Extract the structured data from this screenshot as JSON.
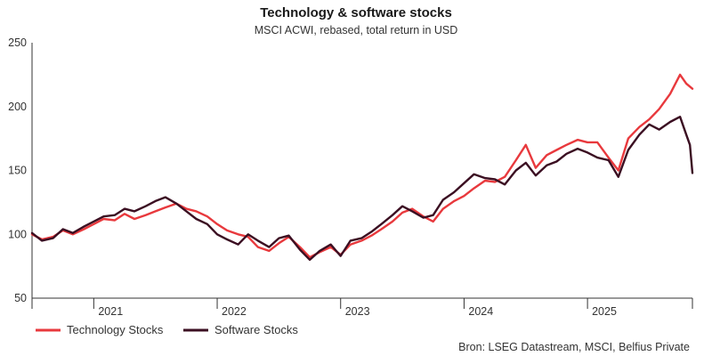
{
  "chart_data": {
    "type": "line",
    "title": "Technology & software stocks",
    "subtitle": "MSCI ACWI, rebased, total return in USD",
    "source": "Bron: LSEG Datastream, MSCI, Belfius Private",
    "ylim": [
      50,
      250
    ],
    "yticks": [
      50,
      100,
      150,
      200,
      250
    ],
    "ytick_labels": [
      "50",
      "100",
      "150",
      "200",
      "250"
    ],
    "xlim": [
      2020.5,
      2025.85
    ],
    "x_period_labels": [
      {
        "label": "2021",
        "year": 2021
      },
      {
        "label": "2022",
        "year": 2022
      },
      {
        "label": "2023",
        "year": 2023
      },
      {
        "label": "2024",
        "year": 2024
      },
      {
        "label": "2025",
        "year": 2025
      }
    ],
    "grid": false,
    "legend_position": "bottom-left",
    "series": [
      {
        "name": "Technology Stocks",
        "color": "#e8393d",
        "points": [
          [
            2020.5,
            100
          ],
          [
            2020.58,
            96
          ],
          [
            2020.67,
            98
          ],
          [
            2020.75,
            103
          ],
          [
            2020.83,
            100
          ],
          [
            2020.92,
            104
          ],
          [
            2021.0,
            108
          ],
          [
            2021.08,
            112
          ],
          [
            2021.17,
            111
          ],
          [
            2021.25,
            116
          ],
          [
            2021.33,
            112
          ],
          [
            2021.42,
            115
          ],
          [
            2021.5,
            118
          ],
          [
            2021.58,
            121
          ],
          [
            2021.67,
            124
          ],
          [
            2021.75,
            120
          ],
          [
            2021.83,
            118
          ],
          [
            2021.92,
            114
          ],
          [
            2022.0,
            108
          ],
          [
            2022.08,
            103
          ],
          [
            2022.17,
            100
          ],
          [
            2022.25,
            98
          ],
          [
            2022.33,
            90
          ],
          [
            2022.42,
            87
          ],
          [
            2022.5,
            93
          ],
          [
            2022.58,
            98
          ],
          [
            2022.67,
            90
          ],
          [
            2022.75,
            82
          ],
          [
            2022.83,
            86
          ],
          [
            2022.92,
            90
          ],
          [
            2023.0,
            84
          ],
          [
            2023.08,
            92
          ],
          [
            2023.17,
            95
          ],
          [
            2023.25,
            99
          ],
          [
            2023.33,
            104
          ],
          [
            2023.42,
            110
          ],
          [
            2023.5,
            117
          ],
          [
            2023.58,
            120
          ],
          [
            2023.67,
            114
          ],
          [
            2023.75,
            110
          ],
          [
            2023.83,
            120
          ],
          [
            2023.92,
            126
          ],
          [
            2024.0,
            130
          ],
          [
            2024.08,
            136
          ],
          [
            2024.17,
            142
          ],
          [
            2024.25,
            141
          ],
          [
            2024.33,
            145
          ],
          [
            2024.42,
            158
          ],
          [
            2024.5,
            170
          ],
          [
            2024.58,
            152
          ],
          [
            2024.67,
            162
          ],
          [
            2024.75,
            166
          ],
          [
            2024.83,
            170
          ],
          [
            2024.92,
            174
          ],
          [
            2025.0,
            172
          ],
          [
            2025.08,
            172
          ],
          [
            2025.17,
            160
          ],
          [
            2025.25,
            150
          ],
          [
            2025.33,
            175
          ],
          [
            2025.42,
            184
          ],
          [
            2025.5,
            190
          ],
          [
            2025.58,
            198
          ],
          [
            2025.67,
            210
          ],
          [
            2025.75,
            225
          ],
          [
            2025.8,
            218
          ],
          [
            2025.85,
            214
          ]
        ]
      },
      {
        "name": "Software Stocks",
        "color": "#3b0f22",
        "points": [
          [
            2020.5,
            101
          ],
          [
            2020.58,
            95
          ],
          [
            2020.67,
            97
          ],
          [
            2020.75,
            104
          ],
          [
            2020.83,
            101
          ],
          [
            2020.92,
            106
          ],
          [
            2021.0,
            110
          ],
          [
            2021.08,
            114
          ],
          [
            2021.17,
            115
          ],
          [
            2021.25,
            120
          ],
          [
            2021.33,
            118
          ],
          [
            2021.42,
            122
          ],
          [
            2021.5,
            126
          ],
          [
            2021.58,
            129
          ],
          [
            2021.67,
            124
          ],
          [
            2021.75,
            118
          ],
          [
            2021.83,
            112
          ],
          [
            2021.92,
            108
          ],
          [
            2022.0,
            100
          ],
          [
            2022.08,
            96
          ],
          [
            2022.17,
            92
          ],
          [
            2022.25,
            100
          ],
          [
            2022.33,
            95
          ],
          [
            2022.42,
            90
          ],
          [
            2022.5,
            97
          ],
          [
            2022.58,
            99
          ],
          [
            2022.67,
            88
          ],
          [
            2022.75,
            80
          ],
          [
            2022.83,
            87
          ],
          [
            2022.92,
            92
          ],
          [
            2023.0,
            83
          ],
          [
            2023.08,
            95
          ],
          [
            2023.17,
            97
          ],
          [
            2023.25,
            102
          ],
          [
            2023.33,
            108
          ],
          [
            2023.42,
            115
          ],
          [
            2023.5,
            122
          ],
          [
            2023.58,
            118
          ],
          [
            2023.67,
            113
          ],
          [
            2023.75,
            115
          ],
          [
            2023.83,
            127
          ],
          [
            2023.92,
            133
          ],
          [
            2024.0,
            140
          ],
          [
            2024.08,
            147
          ],
          [
            2024.17,
            144
          ],
          [
            2024.25,
            143
          ],
          [
            2024.33,
            139
          ],
          [
            2024.42,
            150
          ],
          [
            2024.5,
            156
          ],
          [
            2024.58,
            146
          ],
          [
            2024.67,
            154
          ],
          [
            2024.75,
            157
          ],
          [
            2024.83,
            163
          ],
          [
            2024.92,
            167
          ],
          [
            2025.0,
            164
          ],
          [
            2025.08,
            160
          ],
          [
            2025.17,
            158
          ],
          [
            2025.25,
            145
          ],
          [
            2025.33,
            166
          ],
          [
            2025.42,
            178
          ],
          [
            2025.5,
            186
          ],
          [
            2025.58,
            182
          ],
          [
            2025.67,
            188
          ],
          [
            2025.75,
            192
          ],
          [
            2025.8,
            178
          ],
          [
            2025.83,
            170
          ],
          [
            2025.85,
            148
          ]
        ]
      }
    ]
  }
}
